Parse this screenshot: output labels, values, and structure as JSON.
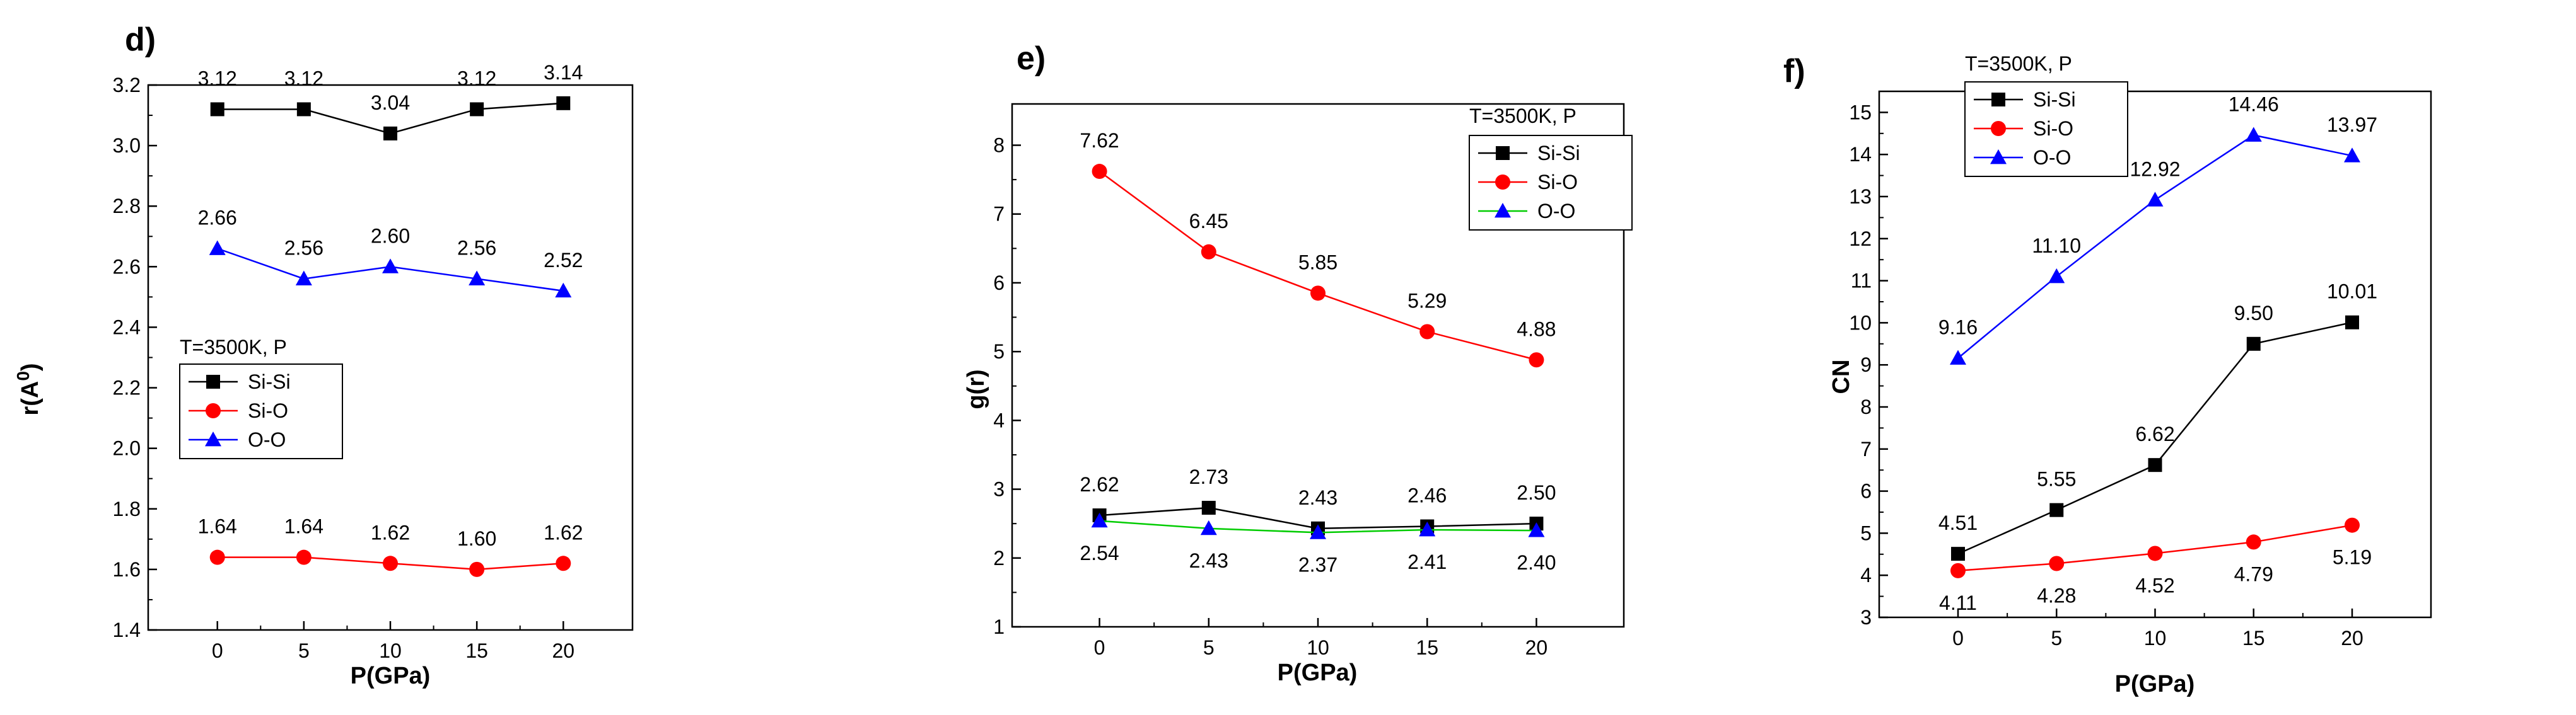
{
  "colors": {
    "si_si": "#000000",
    "si_o": "#ff0000",
    "o_o": "#0000ff",
    "o_o_e": "#00cc00"
  },
  "chart_data": [
    {
      "panel_label": "d)",
      "type": "line",
      "x": [
        0,
        5,
        10,
        15,
        20
      ],
      "xticks": [
        "0",
        "5",
        "10",
        "15",
        "20"
      ],
      "xlim": [
        -4,
        24
      ],
      "xlabel": "P(GPa)",
      "ylabel_base": "r(A",
      "ylabel_sup": "0",
      "ylabel_tail": ")",
      "ylim": [
        1.4,
        3.2
      ],
      "yticks": [
        "1.4",
        "1.6",
        "1.8",
        "2.0",
        "2.2",
        "2.4",
        "2.6",
        "2.8",
        "3.0",
        "3.2"
      ],
      "legend_title": "T=3500K, P",
      "series": [
        {
          "name": "Si-Si",
          "marker": "square",
          "color": "#000000",
          "line_color": "#000000",
          "values": [
            3.12,
            3.12,
            3.04,
            3.12,
            3.14
          ],
          "labels": [
            "3.12",
            "3.12",
            "3.04",
            "3.12",
            "3.14"
          ],
          "label_pos": "above"
        },
        {
          "name": "Si-O",
          "marker": "circle",
          "color": "#ff0000",
          "line_color": "#ff0000",
          "values": [
            1.64,
            1.64,
            1.62,
            1.6,
            1.62
          ],
          "labels": [
            "1.64",
            "1.64",
            "1.62",
            "1.60",
            "1.62"
          ],
          "label_pos": "above"
        },
        {
          "name": "O-O",
          "marker": "triangle",
          "color": "#0000ff",
          "line_color": "#0000ff",
          "values": [
            2.66,
            2.56,
            2.6,
            2.56,
            2.52
          ],
          "labels": [
            "2.66",
            "2.56",
            "2.60",
            "2.56",
            "2.52"
          ],
          "label_pos": "above"
        }
      ]
    },
    {
      "panel_label": "e)",
      "type": "line",
      "x": [
        0,
        5,
        10,
        15,
        20
      ],
      "xticks": [
        "0",
        "5",
        "10",
        "15",
        "20"
      ],
      "xlim": [
        -4,
        24
      ],
      "xlabel": "P(GPa)",
      "ylabel_base": "g(r)",
      "ylabel_sup": "",
      "ylabel_tail": "",
      "ylim": [
        1,
        8.6
      ],
      "yticks": [
        "1",
        "2",
        "3",
        "4",
        "5",
        "6",
        "7",
        "8"
      ],
      "legend_title": "T=3500K, P",
      "series": [
        {
          "name": "Si-Si",
          "marker": "square",
          "color": "#000000",
          "line_color": "#000000",
          "values": [
            2.62,
            2.73,
            2.43,
            2.46,
            2.5
          ],
          "labels": [
            "2.62",
            "2.73",
            "2.43",
            "2.46",
            "2.50"
          ],
          "label_pos": "above"
        },
        {
          "name": "Si-O",
          "marker": "circle",
          "color": "#ff0000",
          "line_color": "#ff0000",
          "values": [
            7.62,
            6.45,
            5.85,
            5.29,
            4.88
          ],
          "labels": [
            "7.62",
            "6.45",
            "5.85",
            "5.29",
            "4.88"
          ],
          "label_pos": "above"
        },
        {
          "name": "O-O",
          "marker": "triangle",
          "color": "#0000ff",
          "line_color": "#00cc00",
          "values": [
            2.54,
            2.43,
            2.37,
            2.41,
            2.4
          ],
          "labels": [
            "2.54",
            "2.43",
            "2.37",
            "2.41",
            "2.40"
          ],
          "label_pos": "below"
        }
      ]
    },
    {
      "panel_label": "f)",
      "type": "line",
      "x": [
        0,
        5,
        10,
        15,
        20
      ],
      "xticks": [
        "0",
        "5",
        "10",
        "15",
        "20"
      ],
      "xlim": [
        -4,
        24
      ],
      "xlabel": "P(GPa)",
      "ylabel_base": "CN",
      "ylabel_sup": "",
      "ylabel_tail": "",
      "ylim": [
        3,
        15.5
      ],
      "yticks": [
        "3",
        "4",
        "5",
        "6",
        "7",
        "8",
        "9",
        "10",
        "11",
        "12",
        "13",
        "14",
        "15"
      ],
      "legend_title": "T=3500K, P",
      "series": [
        {
          "name": "Si-Si",
          "marker": "square",
          "color": "#000000",
          "line_color": "#000000",
          "values": [
            4.51,
            5.55,
            6.62,
            9.5,
            10.01
          ],
          "labels": [
            "4.51",
            "5.55",
            "6.62",
            "9.50",
            "10.01"
          ],
          "label_pos": "above"
        },
        {
          "name": "Si-O",
          "marker": "circle",
          "color": "#ff0000",
          "line_color": "#ff0000",
          "values": [
            4.11,
            4.28,
            4.52,
            4.79,
            5.19
          ],
          "labels": [
            "4.11",
            "4.28",
            "4.52",
            "4.79",
            "5.19"
          ],
          "label_pos": "below"
        },
        {
          "name": "O-O",
          "marker": "triangle",
          "color": "#0000ff",
          "line_color": "#0000ff",
          "values": [
            9.16,
            11.1,
            12.92,
            14.46,
            13.97
          ],
          "labels": [
            "9.16",
            "11.10",
            "12.92",
            "14.46",
            "13.97"
          ],
          "label_pos": "above"
        }
      ]
    }
  ]
}
